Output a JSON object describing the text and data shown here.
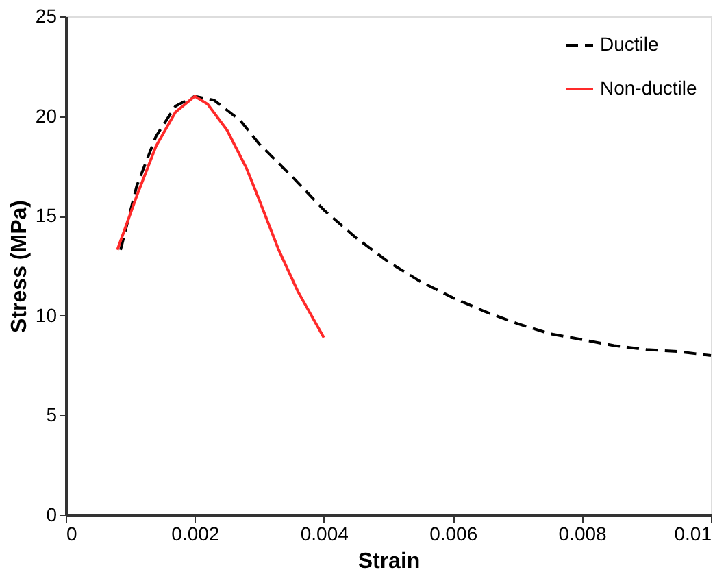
{
  "chart_data": {
    "type": "line",
    "xlabel": "Strain",
    "ylabel": "Stress (MPa)",
    "xlim": [
      0,
      0.01
    ],
    "xticks": [
      0,
      0.002,
      0.004,
      0.006,
      0.008,
      0.01
    ],
    "ylim": [
      0,
      25
    ],
    "yticks": [
      0,
      5,
      10,
      15,
      20,
      25
    ],
    "grid": false,
    "legend": "top right",
    "marker": "none",
    "series": [
      {
        "name": "Ductile",
        "color": "#000000",
        "line_style": "dashed",
        "x": [
          0.00085,
          0.0011,
          0.0014,
          0.0017,
          0.002,
          0.0023,
          0.0027,
          0.003,
          0.0035,
          0.004,
          0.0045,
          0.005,
          0.0055,
          0.006,
          0.0065,
          0.007,
          0.0075,
          0.008,
          0.0085,
          0.009,
          0.0095,
          0.01
        ],
        "values": [
          13.3,
          16.5,
          19.0,
          20.5,
          21.0,
          20.8,
          19.8,
          18.6,
          17.0,
          15.3,
          13.9,
          12.7,
          11.7,
          10.9,
          10.2,
          9.6,
          9.1,
          8.8,
          8.5,
          8.3,
          8.2,
          8.0
        ]
      },
      {
        "name": "Non-ductile",
        "color": "#ff2a2a",
        "line_style": "solid",
        "x": [
          0.0008,
          0.0011,
          0.0014,
          0.0017,
          0.002,
          0.0022,
          0.0025,
          0.0028,
          0.003,
          0.0033,
          0.0036,
          0.004
        ],
        "values": [
          13.3,
          16.0,
          18.5,
          20.2,
          21.0,
          20.6,
          19.3,
          17.4,
          15.8,
          13.3,
          11.2,
          8.9
        ]
      }
    ]
  }
}
